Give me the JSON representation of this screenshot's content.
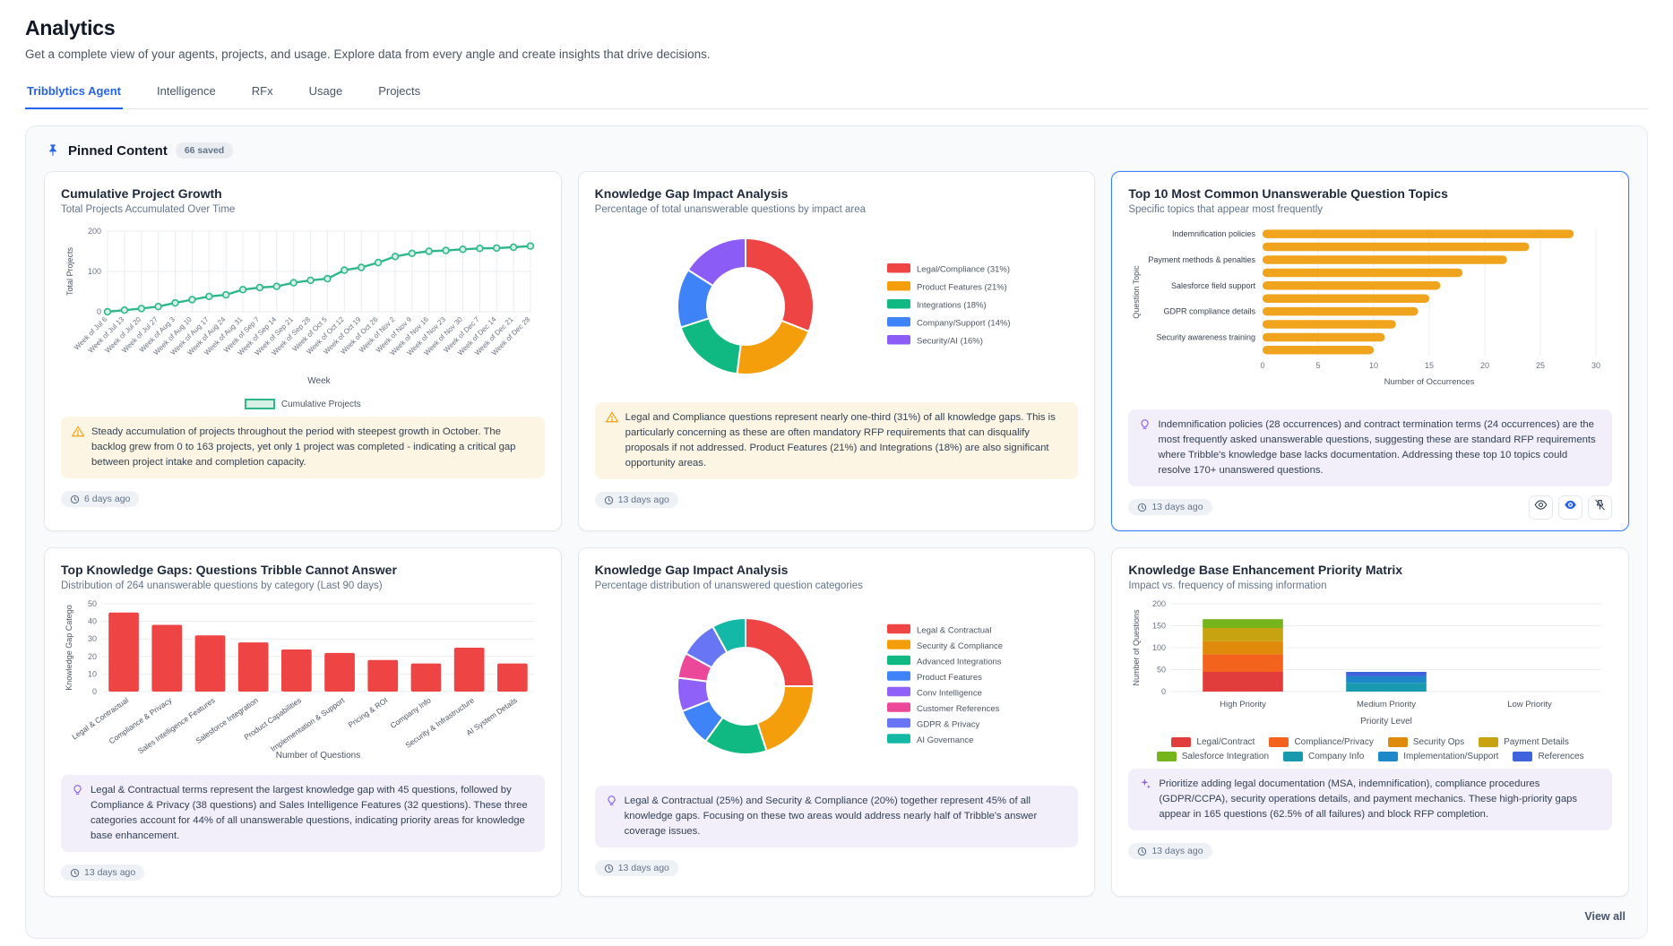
{
  "page": {
    "title": "Analytics",
    "subtitle": "Get a complete view of your agents, projects, and usage. Explore data from every angle and create insights that drive decisions."
  },
  "tabs": [
    {
      "label": "Tribblytics Agent",
      "active": true
    },
    {
      "label": "Intelligence",
      "active": false
    },
    {
      "label": "RFx",
      "active": false
    },
    {
      "label": "Usage",
      "active": false
    },
    {
      "label": "Projects",
      "active": false
    }
  ],
  "pinned": {
    "title": "Pinned Content",
    "badge": "66 saved",
    "view_all": "View all"
  },
  "colors": {
    "accent_blue": "#2563eb",
    "selected_border": "#3b82f6",
    "warning_bg": "#fcf5e3",
    "purple_bg": "#f2effb",
    "warning_icon": "#f59e0b",
    "purple_icon": "#8b5cf6"
  },
  "cards": [
    {
      "title": "Cumulative Project Growth",
      "subtitle": "Total Projects Accumulated Over Time",
      "timestamp": "6 days ago",
      "selected": false,
      "insight": {
        "type": "warning",
        "icon": "warning-icon",
        "text": "Steady accumulation of projects throughout the period with steepest growth in October. The backlog grew from 0 to 163 projects, yet only 1 project was completed - indicating a critical gap between project intake and completion capacity."
      },
      "chart": {
        "type": "line",
        "color": "#2eb88a",
        "marker_fill": "#d7f0e4",
        "xlabel": "Week",
        "ylabel": "Total Projects",
        "ylim": [
          0,
          200
        ],
        "yticks": [
          0,
          100,
          200
        ],
        "legend": "Cumulative Projects",
        "x": [
          "Week of Jul 6",
          "Week of Jul 13",
          "Week of Jul 20",
          "Week of Jul 27",
          "Week of Aug 3",
          "Week of Aug 10",
          "Week of Aug 17",
          "Week of Aug 24",
          "Week of Aug 31",
          "Week of Sep 7",
          "Week of Sep 14",
          "Week of Sep 21",
          "Week of Sep 28",
          "Week of Oct 5",
          "Week of Oct 12",
          "Week of Oct 19",
          "Week of Oct 26",
          "Week of Nov 2",
          "Week of Nov 9",
          "Week of Nov 16",
          "Week of Nov 23",
          "Week of Nov 30",
          "Week of Dec 7",
          "Week of Dec 14",
          "Week of Dec 21",
          "Week of Dec 28"
        ],
        "values": [
          0,
          4,
          8,
          13,
          22,
          30,
          38,
          42,
          55,
          60,
          63,
          72,
          78,
          82,
          103,
          110,
          122,
          137,
          145,
          150,
          152,
          155,
          157,
          158,
          160,
          163
        ]
      }
    },
    {
      "title": "Knowledge Gap Impact Analysis",
      "subtitle": "Percentage of total unanswerable questions by impact area",
      "timestamp": "13 days ago",
      "selected": false,
      "insight": {
        "type": "warning",
        "icon": "warning-icon",
        "text": "Legal and Compliance questions represent nearly one-third (31%) of all knowledge gaps. This is particularly concerning as these are often mandatory RFP requirements that can disqualify proposals if not addressed. Product Features (21%) and Integrations (18%) are also significant opportunity areas."
      },
      "chart": {
        "type": "donut",
        "slices": [
          {
            "label": "Legal/Compliance (31%)",
            "value": 31,
            "color": "#ef4444"
          },
          {
            "label": "Product Features (21%)",
            "value": 21,
            "color": "#f59e0b"
          },
          {
            "label": "Integrations (18%)",
            "value": 18,
            "color": "#10b981"
          },
          {
            "label": "Company/Support (14%)",
            "value": 14,
            "color": "#3f83f8"
          },
          {
            "label": "Security/AI (16%)",
            "value": 16,
            "color": "#8b5cf6"
          }
        ]
      }
    },
    {
      "title": "Top 10 Most Common Unanswerable Question Topics",
      "subtitle": "Specific topics that appear most frequently",
      "timestamp": "13 days ago",
      "selected": true,
      "actions": [
        "eye-icon",
        "blue-eye-icon",
        "unpin-icon"
      ],
      "insight": {
        "type": "purple",
        "icon": "lightbulb-icon",
        "text": "Indemnification policies (28 occurrences) and contract termination terms (24 occurrences) are the most frequently asked unanswerable questions, suggesting these are standard RFP requirements where Tribble's knowledge base lacks documentation. Addressing these top 10 topics could resolve 170+ unanswered questions."
      },
      "chart": {
        "type": "hbar",
        "color": "#f0a31c",
        "xlabel": "Number of Occurrences",
        "ylabel": "Question Topic",
        "xlim": [
          0,
          30
        ],
        "xticks": [
          0,
          5,
          10,
          15,
          20,
          25,
          30
        ],
        "labels": [
          "Indemnification policies",
          "",
          "Payment methods & penalties",
          "",
          "Salesforce field support",
          "",
          "GDPR compliance details",
          "",
          "Security awareness training",
          ""
        ],
        "values": [
          28,
          24,
          22,
          18,
          16,
          15,
          14,
          12,
          11,
          10
        ]
      }
    },
    {
      "title": "Top Knowledge Gaps: Questions Tribble Cannot Answer",
      "subtitle": "Distribution of 264 unanswerable questions by category (Last 90 days)",
      "timestamp": "13 days ago",
      "selected": false,
      "insight": {
        "type": "purple",
        "icon": "lightbulb-icon",
        "text": "Legal & Contractual terms represent the largest knowledge gap with 45 questions, followed by Compliance & Privacy (38 questions) and Sales Intelligence Features (32 questions). These three categories account for 44% of all unanswerable questions, indicating priority areas for knowledge base enhancement."
      },
      "chart": {
        "type": "vbar",
        "color": "#ef4444",
        "xlabel": "Number of Questions",
        "ylabel": "Knowledge Gap Catego",
        "ylim": [
          0,
          50
        ],
        "yticks": [
          0,
          10,
          20,
          30,
          40,
          50
        ],
        "categories": [
          "Legal & Contractual",
          "Compliance & Privacy",
          "Sales Intelligence Features",
          "Salesforce Integration",
          "Product Capabilities",
          "Implementation & Support",
          "Pricing & ROI",
          "Company Info",
          "Security & Infrastructure",
          "AI System Details"
        ],
        "values": [
          45,
          38,
          32,
          28,
          24,
          22,
          18,
          16,
          25,
          16
        ]
      }
    },
    {
      "title": "Knowledge Gap Impact Analysis",
      "subtitle": "Percentage distribution of unanswered question categories",
      "timestamp": "13 days ago",
      "selected": false,
      "insight": {
        "type": "purple",
        "icon": "lightbulb-icon",
        "text": "Legal & Contractual (25%) and Security & Compliance (20%) together represent 45% of all knowledge gaps. Focusing on these two areas would address nearly half of Tribble's answer coverage issues."
      },
      "chart": {
        "type": "donut",
        "slices": [
          {
            "label": "Legal & Contractual",
            "value": 25,
            "color": "#ef4444"
          },
          {
            "label": "Security & Compliance",
            "value": 20,
            "color": "#f59e0b"
          },
          {
            "label": "Advanced Integrations",
            "value": 15,
            "color": "#10b981"
          },
          {
            "label": "Product Features",
            "value": 9,
            "color": "#3f83f8"
          },
          {
            "label": "Conv Intelligence",
            "value": 8,
            "color": "#9061f9"
          },
          {
            "label": "Customer References",
            "value": 6,
            "color": "#ec4899"
          },
          {
            "label": "GDPR & Privacy",
            "value": 9,
            "color": "#6875f5"
          },
          {
            "label": "AI Governance",
            "value": 8,
            "color": "#14b8a6"
          }
        ]
      }
    },
    {
      "title": "Knowledge Base Enhancement Priority Matrix",
      "subtitle": "Impact vs. frequency of missing information",
      "timestamp": "13 days ago",
      "selected": false,
      "insight": {
        "type": "purple",
        "icon": "sparkles-icon",
        "text": "Prioritize adding legal documentation (MSA, indemnification), compliance procedures (GDPR/CCPA), security operations details, and payment mechanics. These high-priority gaps appear in 165 questions (62.5% of all failures) and block RFP completion."
      },
      "chart": {
        "type": "stacked",
        "xlabel": "Priority Level",
        "ylabel": "Number of Questions",
        "ylim": [
          0,
          200
        ],
        "yticks": [
          0,
          50,
          100,
          150,
          200
        ],
        "categories": [
          "High Priority",
          "Medium Priority",
          "Low Priority"
        ],
        "series": [
          {
            "name": "Legal/Contract",
            "color": "#e23d3d",
            "values": [
              45,
              0,
              0
            ]
          },
          {
            "name": "Compliance/Privacy",
            "color": "#f4631e",
            "values": [
              40,
              0,
              0
            ]
          },
          {
            "name": "Security Ops",
            "color": "#e08a0c",
            "values": [
              30,
              0,
              0
            ]
          },
          {
            "name": "Payment Details",
            "color": "#c7a312",
            "values": [
              30,
              0,
              0
            ]
          },
          {
            "name": "Salesforce Integration",
            "color": "#76b41c",
            "values": [
              20,
              0,
              0
            ]
          },
          {
            "name": "Company Info",
            "color": "#1899ae",
            "values": [
              0,
              20,
              0
            ]
          },
          {
            "name": "Implementation/Support",
            "color": "#1e87c9",
            "values": [
              0,
              15,
              0
            ]
          },
          {
            "name": "References",
            "color": "#3e63dd",
            "values": [
              0,
              10,
              0
            ]
          }
        ]
      }
    }
  ]
}
